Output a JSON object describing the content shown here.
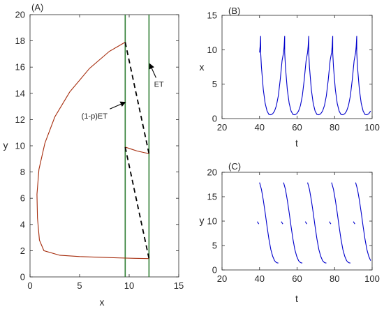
{
  "chart_data": [
    {
      "panel": "(A)",
      "type": "line",
      "xlabel": "x",
      "ylabel": "y",
      "xlim": [
        0,
        15
      ],
      "ylim": [
        0,
        20
      ],
      "xticks": [
        0,
        5,
        10,
        15
      ],
      "yticks": [
        0,
        2,
        4,
        6,
        8,
        10,
        12,
        14,
        16,
        18,
        20
      ],
      "threshold_lines": [
        {
          "x": 9.6,
          "color": "#2e7d32"
        },
        {
          "x": 12.0,
          "color": "#2e7d32"
        }
      ],
      "series": [
        {
          "color": "#a52a0a",
          "style": "solid",
          "points": [
            [
              9.6,
              17.9
            ],
            [
              8.0,
              17.2
            ],
            [
              6.0,
              15.9
            ],
            [
              4.0,
              14.1
            ],
            [
              2.5,
              12.2
            ],
            [
              1.5,
              10.2
            ],
            [
              0.9,
              8.2
            ],
            [
              0.7,
              6.3
            ],
            [
              0.75,
              4.5
            ],
            [
              0.95,
              2.8
            ],
            [
              1.4,
              2.0
            ],
            [
              3.0,
              1.65
            ],
            [
              5.0,
              1.55
            ],
            [
              7.0,
              1.5
            ],
            [
              9.0,
              1.45
            ],
            [
              10.5,
              1.42
            ],
            [
              12.0,
              1.4
            ]
          ]
        },
        {
          "color": "#a52a0a",
          "style": "solid",
          "points": [
            [
              9.6,
              9.9
            ],
            [
              10.2,
              9.75
            ],
            [
              10.8,
              9.6
            ],
            [
              11.4,
              9.5
            ],
            [
              12.0,
              9.4
            ]
          ]
        },
        {
          "color": "#000000",
          "style": "dashed",
          "points": [
            [
              9.6,
              17.9
            ],
            [
              12.0,
              9.4
            ]
          ]
        },
        {
          "color": "#000000",
          "style": "dashed",
          "points": [
            [
              9.6,
              9.9
            ],
            [
              12.0,
              1.4
            ]
          ]
        }
      ],
      "annotations": [
        {
          "text": "(1-p)ET",
          "xy": [
            9.55,
            13.3
          ],
          "xytext": [
            6.5,
            12.3
          ]
        },
        {
          "text": "ET",
          "xy": [
            12.1,
            16.2
          ],
          "xytext": [
            13.0,
            14.7
          ]
        }
      ]
    },
    {
      "panel": "(B)",
      "type": "line",
      "xlabel": "t",
      "ylabel": "x",
      "xlim": [
        20,
        100
      ],
      "ylim": [
        0,
        15
      ],
      "xticks": [
        20,
        40,
        60,
        80,
        100
      ],
      "yticks": [
        0,
        5,
        10,
        15
      ],
      "series": [
        {
          "color": "#0000cc",
          "cycle_starts": [
            40,
            52.8,
            65.6,
            78.4,
            91.2
          ],
          "points": [
            [
              40,
              9.6
            ],
            [
              40.3,
              10.5
            ],
            [
              40.6,
              12.0
            ],
            [
              40.6,
              9.6
            ],
            [
              41,
              7.5
            ],
            [
              42,
              4.2
            ],
            [
              43,
              2.2
            ],
            [
              44,
              1.1
            ],
            [
              45,
              0.6
            ],
            [
              46,
              0.55
            ],
            [
              47,
              0.7
            ],
            [
              48,
              1.1
            ],
            [
              49,
              1.9
            ],
            [
              50,
              3.3
            ],
            [
              51,
              5.6
            ],
            [
              52,
              8.4
            ],
            [
              52.8,
              9.6
            ]
          ]
        }
      ]
    },
    {
      "panel": "(C)",
      "type": "line",
      "xlabel": "t",
      "ylabel": "y",
      "xlim": [
        20,
        100
      ],
      "ylim": [
        0,
        20
      ],
      "xticks": [
        20,
        40,
        60,
        80,
        100
      ],
      "yticks": [
        0,
        5,
        10,
        15,
        20
      ],
      "series": [
        {
          "color": "#0000cc",
          "cycle_starts": [
            40,
            52.8,
            65.6,
            78.4,
            91.2
          ],
          "points": [
            [
              40,
              17.9
            ],
            [
              41,
              16.5
            ],
            [
              42,
              14.3
            ],
            [
              43,
              11.7
            ],
            [
              44,
              8.9
            ],
            [
              45,
              6.3
            ],
            [
              46,
              4.2
            ],
            [
              47,
              2.8
            ],
            [
              48,
              1.9
            ],
            [
              49,
              1.5
            ],
            [
              50,
              1.4
            ]
          ],
          "short_segment": [
            [
              -1.2,
              9.9
            ],
            [
              -0.4,
              9.4
            ]
          ]
        }
      ]
    }
  ]
}
